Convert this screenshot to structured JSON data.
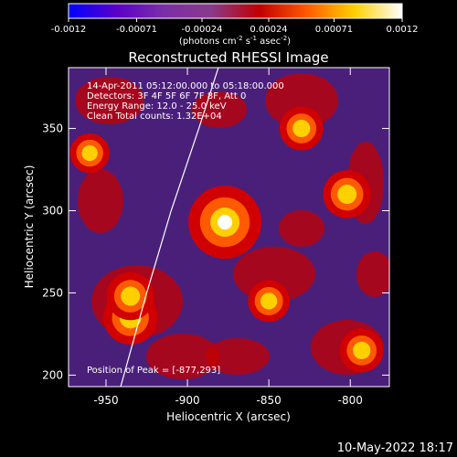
{
  "chart_data": {
    "type": "heatmap",
    "title": "Reconstructed RHESSI Image",
    "xlabel": "Heliocentric X (arcsec)",
    "ylabel": "Heliocentric Y (arcsec)",
    "xlim": [
      -973,
      -776
    ],
    "ylim": [
      193,
      387
    ],
    "x_ticks": [
      -950,
      -900,
      -850,
      -800
    ],
    "y_ticks": [
      200,
      250,
      300,
      350
    ],
    "colorbar": {
      "min": -0.0012,
      "max": 0.0012,
      "ticks": [
        "-0.0012",
        "-0.00071",
        "-0.00024",
        "0.00024",
        "0.00071",
        "0.0012"
      ],
      "unit_text": "(photons cm",
      "unit_exp1": "-2",
      "unit_mid": " s",
      "unit_exp2": "-1",
      "unit_tail": " asec",
      "unit_exp3": "-2",
      "unit_close": ")",
      "colormap": [
        "#0000ff",
        "#5a00c8",
        "#7a2fa8",
        "#8a3a8a",
        "#c00000",
        "#ff5a00",
        "#ffd000",
        "#ffffff"
      ]
    },
    "annotations": [
      "14-Apr-2011 05:12:00.000 to 05:18:00.000",
      "Detectors: 3F 4F 5F 6F 7F 8F, Att 0",
      "Energy Range: 12.0 - 25.0 keV",
      "Clean    Total counts: 1.32E+04"
    ],
    "peak_label": "Position of Peak = [-877,293]",
    "peak": [
      -877,
      293
    ],
    "sources": [
      {
        "x": -877,
        "y": 293,
        "value": 0.0012
      },
      {
        "x": -935,
        "y": 235,
        "value": 0.00075
      },
      {
        "x": -935,
        "y": 248,
        "value": 0.0006
      },
      {
        "x": -802,
        "y": 310,
        "value": 0.0006
      },
      {
        "x": -793,
        "y": 215,
        "value": 0.0005
      },
      {
        "x": -830,
        "y": 350,
        "value": 0.0005
      },
      {
        "x": -850,
        "y": 245,
        "value": 0.00045
      },
      {
        "x": -960,
        "y": 335,
        "value": 0.0004
      }
    ],
    "limb": [
      [
        -941,
        193
      ],
      [
        -925,
        250
      ],
      [
        -910,
        300
      ],
      [
        -893,
        350
      ],
      [
        -881,
        387
      ]
    ]
  },
  "timestamp": "10-May-2022 18:17"
}
